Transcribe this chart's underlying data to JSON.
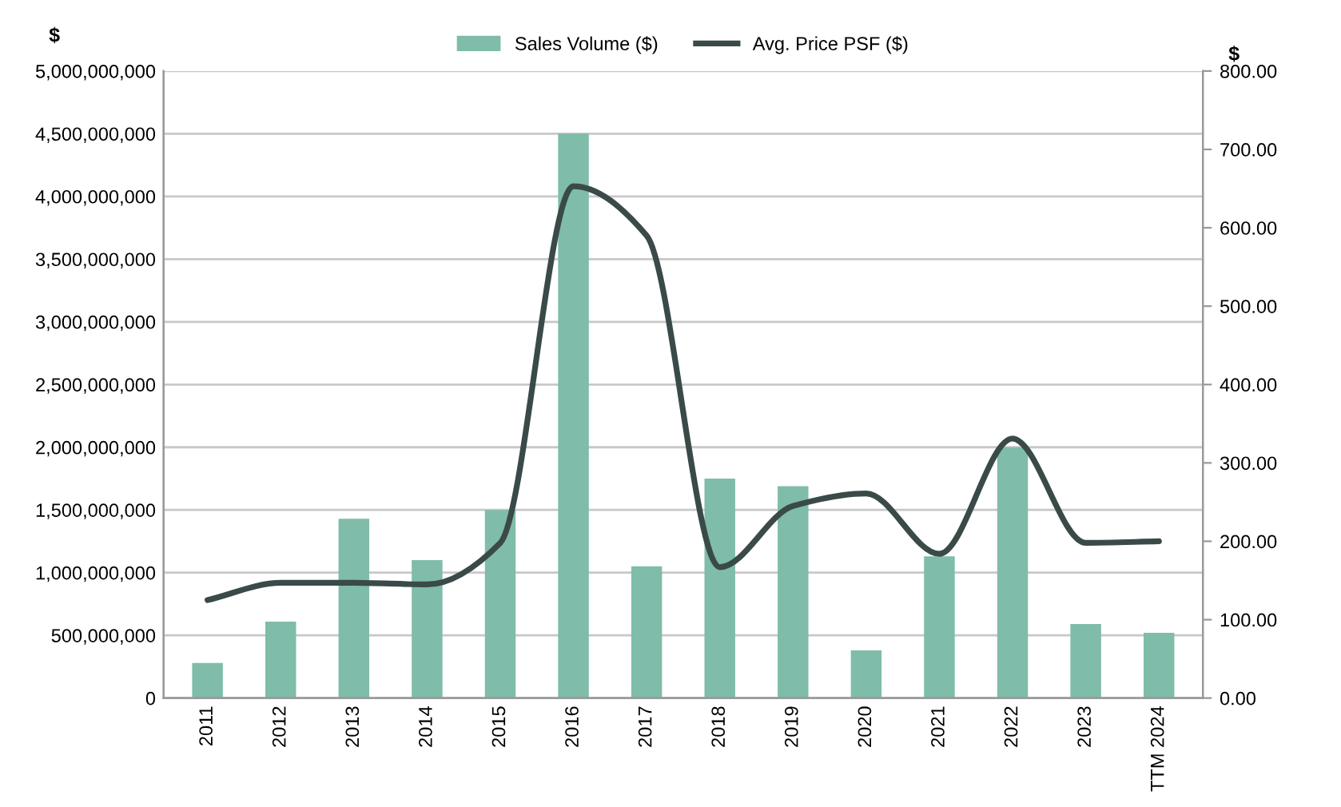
{
  "chart_data": {
    "type": "bar",
    "ylabel": "$",
    "y2label": "$",
    "categories": [
      "2011",
      "2012",
      "2013",
      "2014",
      "2015",
      "2016",
      "2017",
      "2018",
      "2019",
      "2020",
      "2021",
      "2022",
      "2023",
      "TTM 2024"
    ],
    "series": [
      {
        "name": "Sales Volume ($)",
        "color": "#7fbcaa",
        "values": [
          280000000,
          610000000,
          1430000000,
          1100000000,
          1500000000,
          4500000000,
          1050000000,
          1750000000,
          1690000000,
          380000000,
          1130000000,
          2000000000,
          590000000,
          520000000
        ]
      },
      {
        "name": "Avg. Price PSF ($)",
        "type": "line",
        "axis": "y2",
        "color": "#3a4a48",
        "values": [
          125,
          147,
          147,
          145,
          198,
          653,
          590,
          167,
          245,
          261,
          184,
          331,
          198,
          200
        ]
      }
    ],
    "ylim": [
      0,
      5000000000
    ],
    "yticks": [
      {
        "value": 0,
        "label": "0"
      },
      {
        "value": 500000000,
        "label": "500,000,000"
      },
      {
        "value": 1000000000,
        "label": "1,000,000,000"
      },
      {
        "value": 1500000000,
        "label": "1,500,000,000"
      },
      {
        "value": 2000000000,
        "label": "2,000,000,000"
      },
      {
        "value": 2500000000,
        "label": "2,500,000,000"
      },
      {
        "value": 3000000000,
        "label": "3,000,000,000"
      },
      {
        "value": 3500000000,
        "label": "3,500,000,000"
      },
      {
        "value": 4000000000,
        "label": "4,000,000,000"
      },
      {
        "value": 4500000000,
        "label": "4,500,000,000"
      },
      {
        "value": 5000000000,
        "label": "5,000,000,000"
      }
    ],
    "y2lim": [
      0,
      800
    ],
    "y2ticks": [
      {
        "value": 0,
        "label": "0.00"
      },
      {
        "value": 100,
        "label": "100.00"
      },
      {
        "value": 200,
        "label": "200.00"
      },
      {
        "value": 300,
        "label": "300.00"
      },
      {
        "value": 400,
        "label": "400.00"
      },
      {
        "value": 500,
        "label": "500.00"
      },
      {
        "value": 600,
        "label": "600.00"
      },
      {
        "value": 700,
        "label": "700.00"
      },
      {
        "value": 800,
        "label": "800.00"
      }
    ],
    "grid": "y",
    "legend": "top",
    "marker": "none",
    "line_style": "solid"
  }
}
